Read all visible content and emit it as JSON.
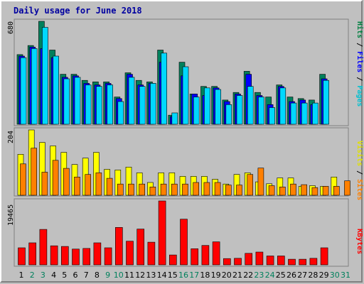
{
  "chart_data": [
    {
      "type": "bar",
      "title": "Daily usage for June 2018",
      "categories": [
        "1",
        "2",
        "3",
        "4",
        "5",
        "6",
        "7",
        "8",
        "9",
        "10",
        "11",
        "12",
        "13",
        "14",
        "15",
        "16",
        "17",
        "18",
        "19",
        "20",
        "21",
        "22",
        "23",
        "24",
        "25",
        "26",
        "27",
        "28",
        "29",
        "30",
        "31"
      ],
      "weekend_days": [
        "2",
        "3",
        "9",
        "10",
        "16",
        "17",
        "23",
        "24",
        "30",
        "31"
      ],
      "ymax_label": "680",
      "legend": [
        "Pages",
        "Files",
        "Hits"
      ],
      "legend_colors": {
        "Pages": "#00c0d0",
        "Files": "#0000ff",
        "Hits": "#008040"
      },
      "series": [
        {
          "name": "Hits",
          "color": "#00805c",
          "values": [
            460,
            520,
            680,
            490,
            330,
            330,
            290,
            280,
            280,
            180,
            340,
            290,
            280,
            490,
            60,
            410,
            200,
            250,
            250,
            160,
            210,
            350,
            210,
            180,
            260,
            180,
            170,
            160,
            330,
            0,
            0
          ]
        },
        {
          "name": "Files",
          "color": "#0000ff",
          "values": [
            450,
            510,
            500,
            440,
            310,
            320,
            270,
            260,
            270,
            170,
            330,
            260,
            270,
            410,
            50,
            320,
            200,
            190,
            240,
            150,
            200,
            330,
            190,
            130,
            250,
            150,
            160,
            130,
            300,
            0,
            0
          ]
        },
        {
          "name": "Pages",
          "color": "#00d8ff",
          "values": [
            440,
            500,
            640,
            450,
            300,
            310,
            260,
            250,
            260,
            150,
            310,
            250,
            270,
            470,
            75,
            380,
            180,
            240,
            230,
            130,
            190,
            250,
            180,
            110,
            240,
            140,
            140,
            140,
            290,
            0,
            0
          ]
        }
      ]
    },
    {
      "type": "bar",
      "ymax_label": "204",
      "legend": [
        "Sites",
        "Visits"
      ],
      "legend_colors": {
        "Sites": "#ff8000",
        "Visits": "#e0e000"
      },
      "series": [
        {
          "name": "Visits",
          "color": "#ffff00",
          "values": [
            128,
            204,
            165,
            154,
            134,
            96,
            116,
            134,
            81,
            79,
            88,
            70,
            40,
            70,
            70,
            59,
            59,
            59,
            50,
            35,
            65,
            70,
            42,
            36,
            54,
            54,
            28,
            30,
            28,
            57,
            0
          ]
        },
        {
          "name": "Sites",
          "color": "#ff8000",
          "values": [
            98,
            147,
            72,
            109,
            84,
            57,
            65,
            70,
            53,
            35,
            35,
            35,
            26,
            35,
            35,
            35,
            40,
            40,
            40,
            32,
            32,
            65,
            85,
            30,
            26,
            35,
            33,
            24,
            28,
            28,
            45
          ]
        }
      ]
    },
    {
      "type": "bar",
      "ymax_label": "19465",
      "legend": [
        "KBytes"
      ],
      "legend_colors": {
        "KBytes": "#ff0000"
      },
      "series": [
        {
          "name": "KBytes",
          "color": "#ff0000",
          "values": [
            5200,
            6700,
            10800,
            5800,
            5600,
            4800,
            5000,
            6700,
            5200,
            11400,
            7200,
            10900,
            6900,
            19465,
            3000,
            13900,
            4900,
            5900,
            7000,
            1900,
            2000,
            3500,
            3900,
            2700,
            2700,
            1700,
            1700,
            2000,
            5200,
            0,
            0
          ]
        }
      ]
    }
  ]
}
